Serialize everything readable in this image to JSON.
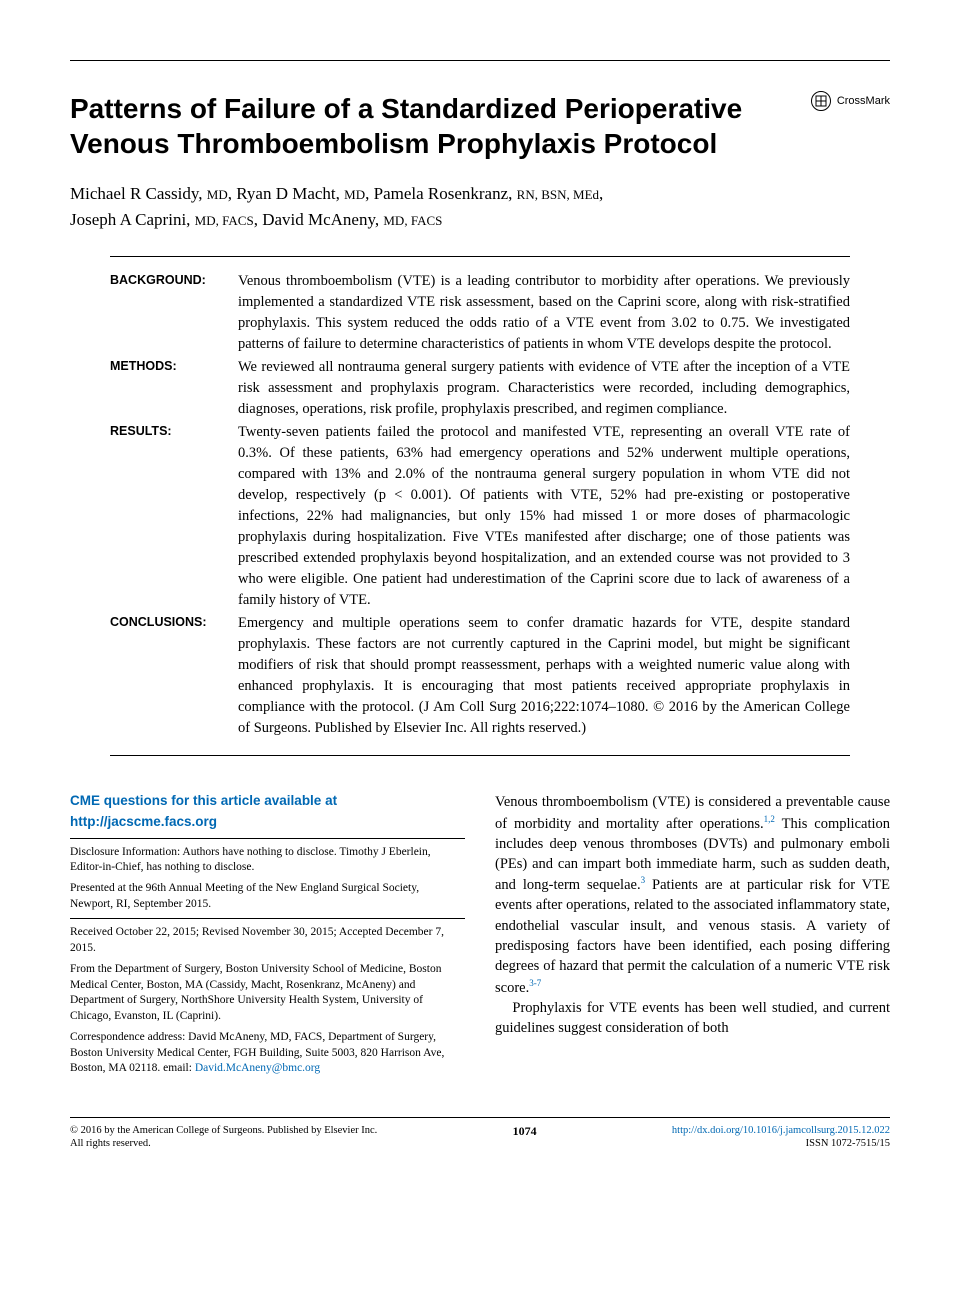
{
  "title": "Patterns of Failure of a Standardized Perioperative Venous Thromboembolism Prophylaxis Protocol",
  "crossmark_label": "CrossMark",
  "authors_html": "Michael R Cassidy, <span class='cred'>MD</span>, Ryan D Macht, <span class='cred'>MD</span>, Pamela Rosenkranz, <span class='cred'>RN, BSN, MEd</span>,<br>Joseph A Caprini, <span class='cred'>MD, FACS</span>, David McAneny, <span class='cred'>MD, FACS</span>",
  "abstract": {
    "background": {
      "label": "BACKGROUND:",
      "text": "Venous thromboembolism (VTE) is a leading contributor to morbidity after operations. We previously implemented a standardized VTE risk assessment, based on the Caprini score, along with risk-stratified prophylaxis. This system reduced the odds ratio of a VTE event from 3.02 to 0.75. We investigated patterns of failure to determine characteristics of patients in whom VTE develops despite the protocol."
    },
    "methods": {
      "label": "METHODS:",
      "text": "We reviewed all nontrauma general surgery patients with evidence of VTE after the inception of a VTE risk assessment and prophylaxis program. Characteristics were recorded, including demographics, diagnoses, operations, risk profile, prophylaxis prescribed, and regimen compliance."
    },
    "results": {
      "label": "RESULTS:",
      "text": "Twenty-seven patients failed the protocol and manifested VTE, representing an overall VTE rate of 0.3%. Of these patients, 63% had emergency operations and 52% underwent multiple operations, compared with 13% and 2.0% of the nontrauma general surgery population in whom VTE did not develop, respectively (p < 0.001). Of patients with VTE, 52% had pre-existing or postoperative infections, 22% had malignancies, but only 15% had missed 1 or more doses of pharmacologic prophylaxis during hospitalization. Five VTEs manifested after discharge; one of those patients was prescribed extended prophylaxis beyond hospitalization, and an extended course was not provided to 3 who were eligible. One patient had underestimation of the Caprini score due to lack of awareness of a family history of VTE."
    },
    "conclusions": {
      "label": "CONCLUSIONS:",
      "text": "Emergency and multiple operations seem to confer dramatic hazards for VTE, despite standard prophylaxis. These factors are not currently captured in the Caprini model, but might be significant modifiers of risk that should prompt reassessment, perhaps with a weighted numeric value along with enhanced prophylaxis. It is encouraging that most patients received appropriate prophylaxis in compliance with the protocol. (J Am Coll Surg 2016;222:1074–1080. © 2016 by the American College of Surgeons. Published by Elsevier Inc. All rights reserved.)"
    }
  },
  "cme": {
    "line1": "CME questions for this article available at",
    "link": "http://jacscme.facs.org"
  },
  "disclosure": "Disclosure Information: Authors have nothing to disclose. Timothy J Eberlein, Editor-in-Chief, has nothing to disclose.",
  "presented": "Presented at the 96th Annual Meeting of the New England Surgical Society, Newport, RI, September 2015.",
  "received": "Received October 22, 2015; Revised November 30, 2015; Accepted December 7, 2015.",
  "affiliation": "From the Department of Surgery, Boston University School of Medicine, Boston Medical Center, Boston, MA (Cassidy, Macht, Rosenkranz, McAneny) and Department of Surgery, NorthShore University Health System, University of Chicago, Evanston, IL (Caprini).",
  "correspondence": "Correspondence address: David McAneny, MD, FACS, Department of Surgery, Boston University Medical Center, FGH Building, Suite 5003, 820 Harrison Ave, Boston, MA 02118. email: ",
  "correspondence_email": "David.McAneny@bmc.org",
  "body_p1": "Venous thromboembolism (VTE) is considered a preventable cause of morbidity and mortality after operations.",
  "body_p1_sup": "1,2",
  "body_p1b": " This complication includes deep venous thromboses (DVTs) and pulmonary emboli (PEs) and can impart both immediate harm, such as sudden death, and long-term sequelae.",
  "body_p1b_sup": "3",
  "body_p1c": " Patients are at particular risk for VTE events after operations, related to the associated inflammatory state, endothelial vascular insult, and venous stasis. A variety of predisposing factors have been identified, each posing differing degrees of hazard that permit the calculation of a numeric VTE risk score.",
  "body_p1c_sup": "3-7",
  "body_p2": "Prophylaxis for VTE events has been well studied, and current guidelines suggest consideration of both",
  "footer": {
    "copyright": "© 2016 by the American College of Surgeons. Published by Elsevier Inc.",
    "rights": "All rights reserved.",
    "page": "1074",
    "doi": "http://dx.doi.org/10.1016/j.jamcollsurg.2015.12.022",
    "issn": "ISSN 1072-7515/15"
  }
}
